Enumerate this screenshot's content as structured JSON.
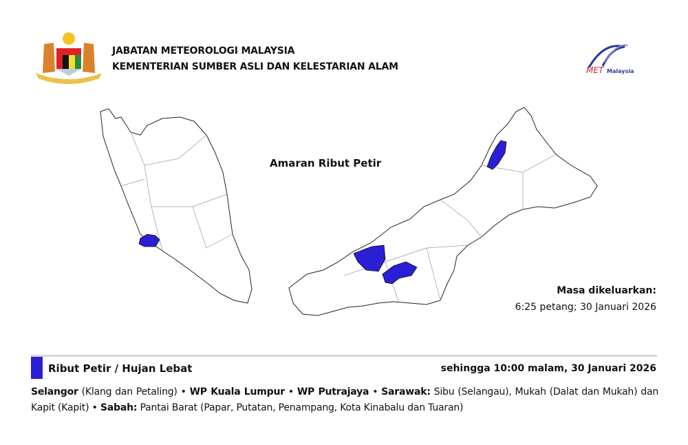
{
  "header": {
    "line1": "JABATAN METEOROLOGI MALAYSIA",
    "line2": "KEMENTERIAN SUMBER ASLI DAN KELESTARIAN ALAM",
    "logo_text": "METMalaysia"
  },
  "map": {
    "title": "Amaran Ribut Petir",
    "highlight_color": "#2a1fd4",
    "issued_label": "Masa dikeluarkan:",
    "issued_time": "6:25 petang; 30 Januari 2026"
  },
  "warning": {
    "title": "Ribut Petir / Hujan Lebat",
    "valid_until": "sehingga 10:00 malam, 30 Januari 2026",
    "areas": [
      {
        "state": "Selangor",
        "detail": " (Klang dan Petaling) • "
      },
      {
        "state": "WP Kuala Lumpur",
        "detail": " • "
      },
      {
        "state": "WP Putrajaya",
        "detail": " • "
      },
      {
        "state": "Sarawak:",
        "detail": " Sibu (Selangau), Mukah (Dalat dan Mukah) dan Kapit (Kapit) • "
      },
      {
        "state": "Sabah:",
        "detail": " Pantai Barat (Papar, Putatan, Penampang, Kota Kinabalu dan Tuaran)"
      }
    ]
  }
}
